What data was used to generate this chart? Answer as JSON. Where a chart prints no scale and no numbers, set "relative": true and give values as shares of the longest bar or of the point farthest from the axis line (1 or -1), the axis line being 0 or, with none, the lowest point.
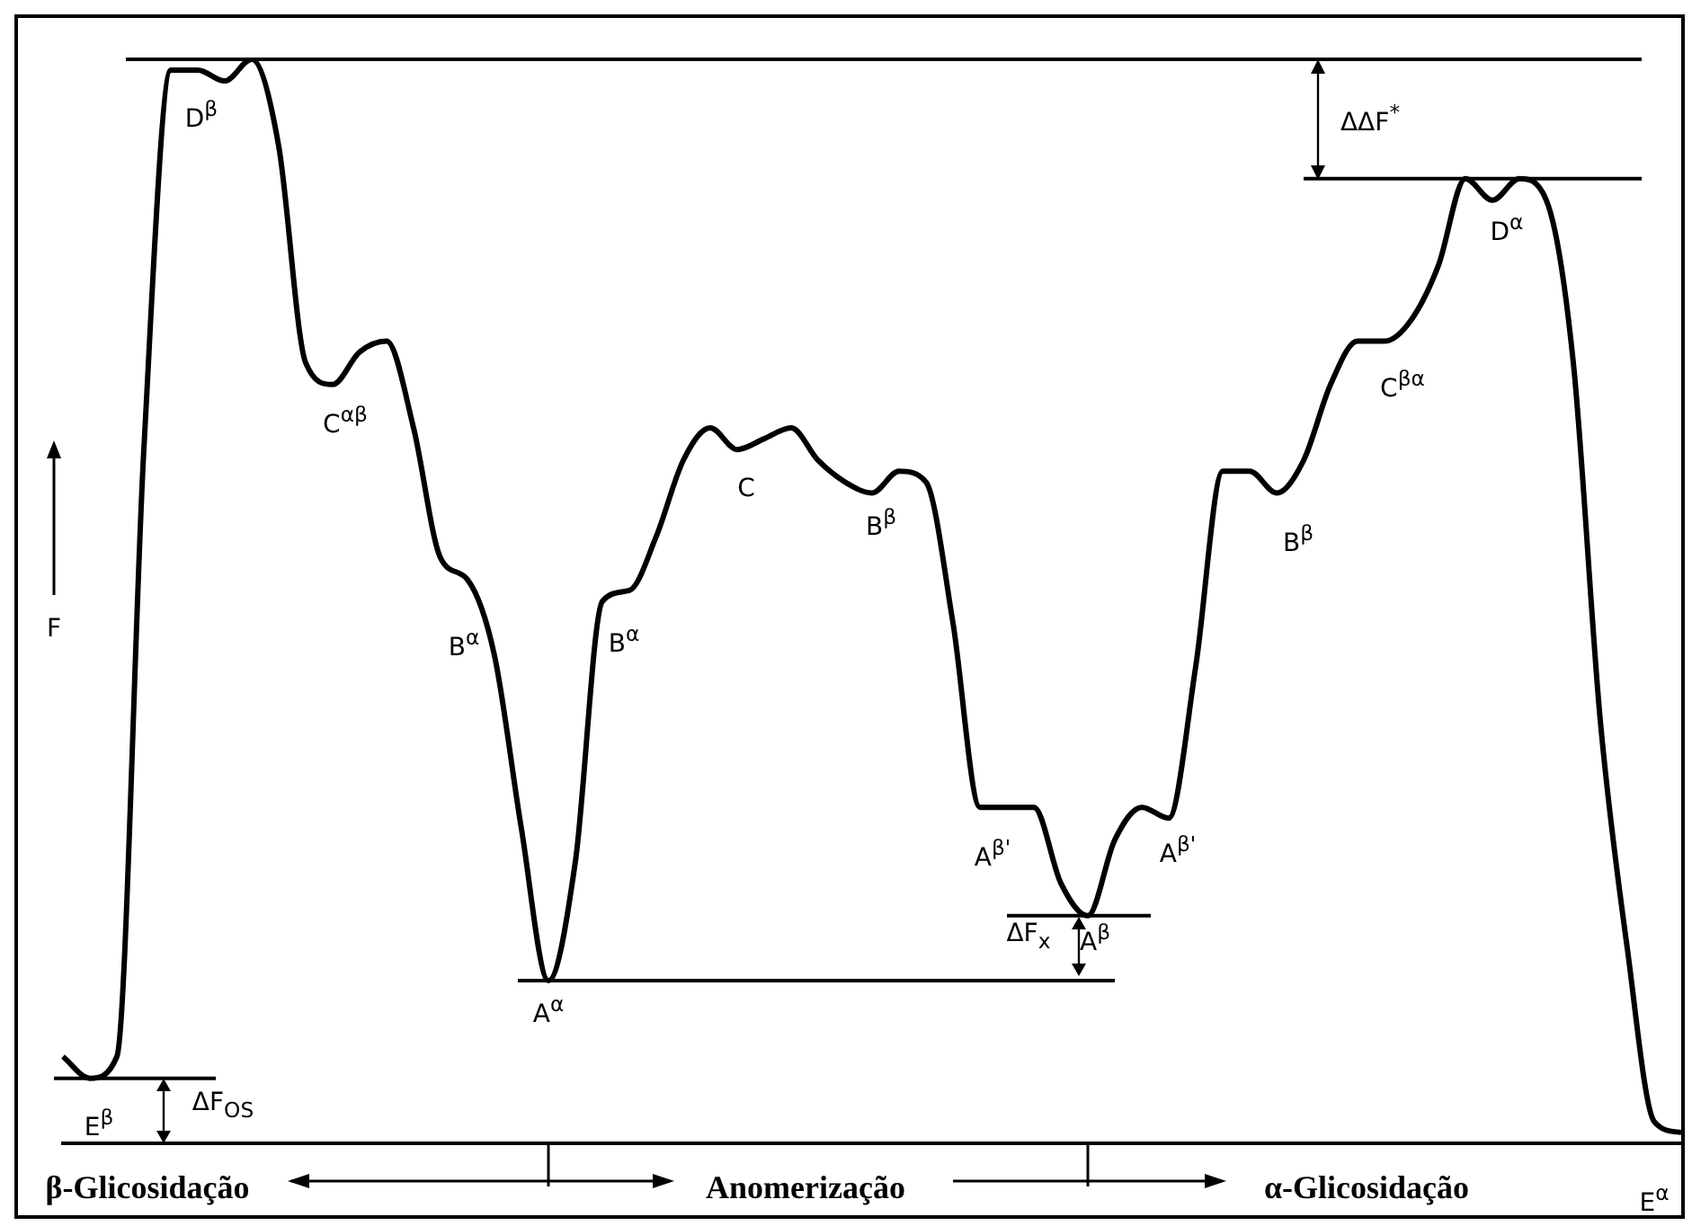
{
  "chart_data": {
    "type": "line",
    "ylabel": "F",
    "relative": true,
    "grid": false,
    "legend": false,
    "marker": "none",
    "line_style": "solid",
    "categories": [
      null,
      null,
      null,
      null,
      null,
      null,
      null,
      null,
      null,
      null,
      null,
      null,
      null,
      null,
      null,
      null,
      null,
      null,
      null,
      null,
      null,
      null,
      null,
      null,
      null,
      null,
      null,
      null,
      null,
      null,
      null,
      null,
      null,
      null,
      null,
      null,
      null,
      null,
      null,
      null,
      null,
      null,
      null,
      null,
      null,
      null,
      null,
      null,
      null,
      null,
      null,
      null,
      null,
      null,
      null,
      null,
      null,
      null,
      null,
      null,
      null
    ],
    "series": [
      {
        "color": "#000000",
        "values": [
          0.08,
          0.06,
          0.08,
          0.64,
          0.99,
          0.99,
          0.98,
          1.0,
          0.92,
          0.72,
          0.7,
          0.73,
          0.74,
          0.66,
          0.54,
          0.52,
          0.45,
          0.29,
          0.15,
          0.26,
          0.5,
          0.51,
          0.56,
          0.63,
          0.66,
          0.64,
          0.65,
          0.66,
          0.63,
          0.61,
          0.6,
          0.62,
          0.61,
          0.48,
          0.31,
          0.31,
          0.31,
          0.24,
          0.21,
          0.28,
          0.31,
          0.3,
          0.44,
          0.62,
          0.62,
          0.6,
          0.63,
          0.7,
          0.74,
          0.74,
          0.76,
          0.81,
          0.89,
          0.87,
          0.89,
          0.87,
          0.72,
          0.39,
          0.18,
          0.02,
          0.01
        ]
      }
    ],
    "ref_lines": [
      {
        "axis": "y",
        "value": 1.0,
        "color": "#000000"
      },
      {
        "axis": "y",
        "value": 0.89,
        "color": "#000000"
      },
      {
        "axis": "y",
        "value": 0.15,
        "color": "#000000"
      },
      {
        "axis": "y",
        "value": 0.21,
        "color": "#000000"
      },
      {
        "axis": "y",
        "value": 0.06,
        "color": "#000000"
      }
    ],
    "annotations": [
      "D$^{β}$",
      "C$^{αβ}$",
      "B$^{α}$",
      "A$^{α}$",
      "B$^{α}$",
      "C",
      "B$^{β}$",
      "A$^{β'}$",
      "A$^{β}$",
      "A$^{β'}$",
      "B$^{β}$",
      "C$^{βα}$",
      "D$^{α}$",
      "E$^{β}$",
      "E$^{α}$",
      "ΔΔF$^{*}$",
      "ΔF$_{x}$",
      "ΔF$_{OS}$",
      "β-Glicosidação",
      "Anomerização",
      "α-Glicosidação"
    ]
  }
}
